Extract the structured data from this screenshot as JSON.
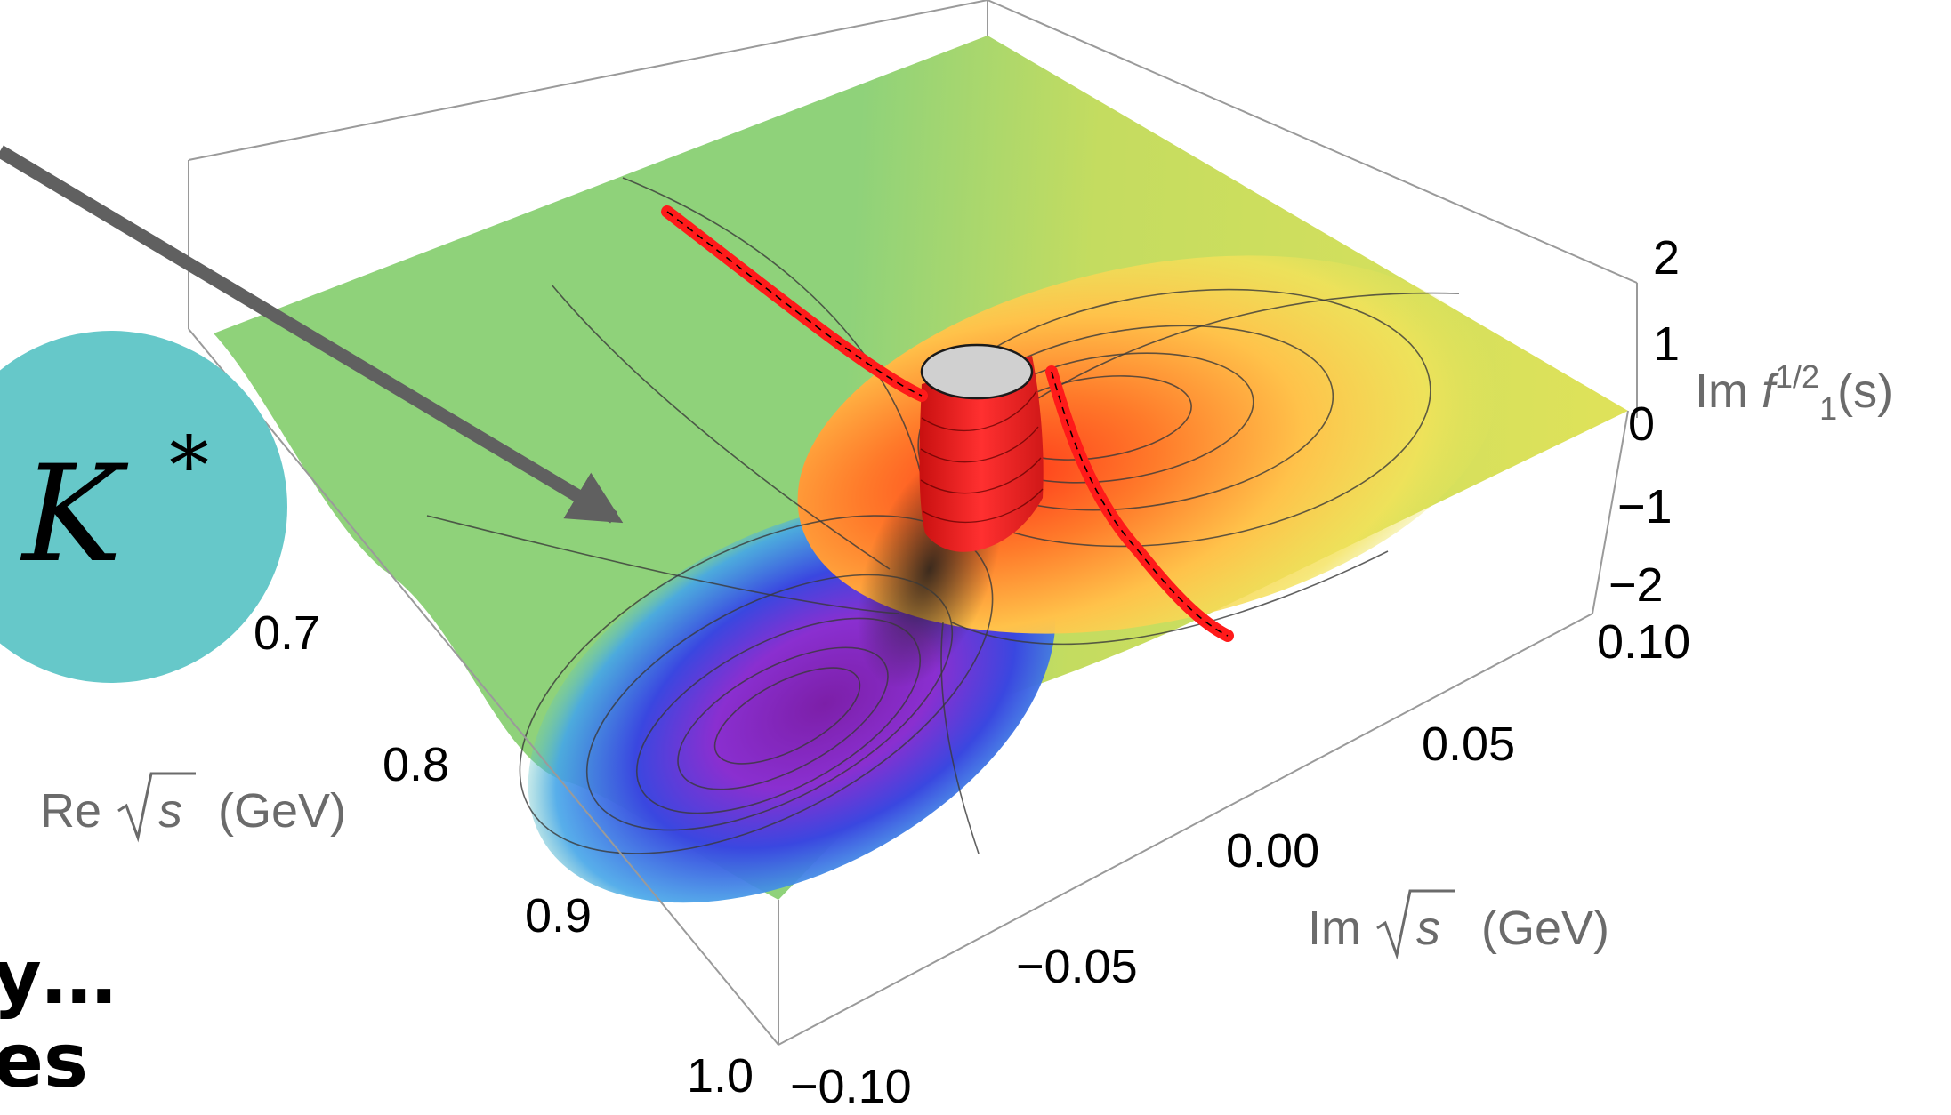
{
  "badge": {
    "symbol": "K",
    "superscript": "*",
    "color": "#66c8c9"
  },
  "plot": {
    "z_axis": {
      "ticks": [
        "2",
        "1",
        "0",
        "−1",
        "−2"
      ],
      "title_prefix": "Im ",
      "title_f": "f",
      "title_sup": "1/2",
      "title_sub": "1",
      "title_suffix": "(s)"
    },
    "re_axis": {
      "ticks": [
        "0.7",
        "0.8",
        "0.9",
        "1.0"
      ],
      "title_prefix": "Re",
      "title_var": "s",
      "title_unit": "(GeV)"
    },
    "im_axis": {
      "ticks": [
        "0.10",
        "0.05",
        "0.00",
        "−0.05",
        "−0.10"
      ],
      "title_prefix": "Im",
      "title_var": "s",
      "title_unit": "(GeV)"
    },
    "colors": {
      "pole_cut": "#ff1a1a",
      "arrow": "#606060",
      "cap": "#d0d0d0"
    }
  },
  "slide_text": {
    "line1": "y…",
    "line2": "es"
  }
}
